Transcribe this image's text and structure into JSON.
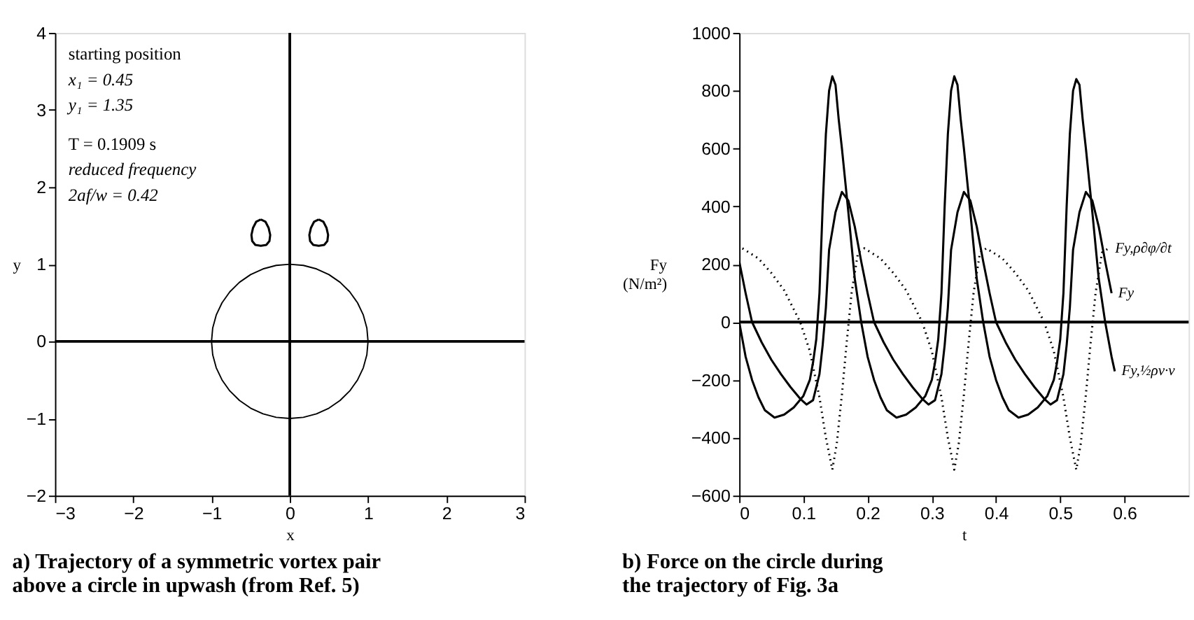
{
  "chart_data": [
    {
      "type": "line",
      "title": "a) Trajectory of a symmetric vortex pair above a circle in upwash (from Ref. 5)",
      "xlabel": "x",
      "ylabel": "y",
      "xlim": [
        -3,
        3
      ],
      "ylim": [
        -2,
        4
      ],
      "xticks": [
        -3,
        -2,
        -1,
        0,
        1,
        2,
        3
      ],
      "yticks": [
        -2,
        -1,
        0,
        1,
        2,
        3,
        4
      ],
      "grid": false,
      "legend": false,
      "ref_lines": [
        {
          "axis": "x",
          "value": 0,
          "color": "#000000"
        },
        {
          "axis": "y",
          "value": 0,
          "color": "#000000"
        }
      ],
      "annotations": [
        "starting position",
        "x₁ = 0.45",
        "y₁ = 1.35",
        "T = 0.1909 s",
        "reduced frequency",
        "2af/w = 0.42"
      ]
    },
    {
      "type": "line",
      "title": "b) Force on the circle during the trajectory of Fig. 3a",
      "xlabel": "t",
      "ylabel": "Fy (N/m²)",
      "xlim": [
        0,
        0.7
      ],
      "ylim": [
        -600,
        1000
      ],
      "xticks": [
        0,
        0.1,
        0.2,
        0.3,
        0.4,
        0.5,
        0.6
      ],
      "yticks": [
        -600,
        -400,
        -200,
        0,
        200,
        400,
        600,
        800,
        1000
      ],
      "grid": false,
      "legend": false,
      "series": [
        {
          "name": "Fy,½ρv·v",
          "color": "#000000",
          "line_style": "solid",
          "x": [
            0,
            0.01,
            0.02,
            0.03,
            0.04,
            0.055,
            0.07,
            0.085,
            0.1,
            0.11,
            0.115,
            0.12,
            0.125,
            0.13,
            0.135,
            0.14,
            0.145,
            0.15,
            0.155,
            0.16,
            0.17,
            0.18,
            0.19,
            0.2,
            0.21,
            0.22,
            0.23,
            0.245,
            0.26,
            0.275,
            0.29,
            0.3,
            0.305,
            0.31,
            0.315,
            0.32,
            0.325,
            0.33,
            0.335,
            0.34,
            0.345,
            0.35,
            0.36,
            0.37,
            0.38,
            0.39,
            0.4,
            0.41,
            0.42,
            0.435,
            0.45,
            0.465,
            0.48,
            0.49,
            0.495,
            0.5,
            0.505,
            0.51,
            0.515,
            0.52,
            0.525,
            0.53,
            0.535,
            0.54,
            0.55,
            0.56,
            0.57,
            0.58,
            0.585
          ],
          "values": [
            0,
            -120,
            -200,
            -260,
            -305,
            -330,
            -320,
            -295,
            -255,
            -200,
            -140,
            -60,
            100,
            400,
            650,
            800,
            850,
            820,
            700,
            600,
            380,
            150,
            0,
            -120,
            -200,
            -260,
            -305,
            -330,
            -320,
            -295,
            -255,
            -200,
            -140,
            -60,
            100,
            400,
            650,
            800,
            850,
            820,
            700,
            600,
            380,
            150,
            0,
            -120,
            -200,
            -260,
            -305,
            -330,
            -320,
            -295,
            -255,
            -200,
            -140,
            -60,
            100,
            400,
            650,
            800,
            840,
            820,
            700,
            600,
            380,
            150,
            0,
            -120,
            -170
          ]
        },
        {
          "name": "Fy",
          "color": "#000000",
          "line_style": "solid",
          "x": [
            0,
            0.01,
            0.02,
            0.035,
            0.05,
            0.065,
            0.08,
            0.095,
            0.105,
            0.115,
            0.125,
            0.13,
            0.135,
            0.14,
            0.15,
            0.16,
            0.17,
            0.18,
            0.19,
            0.2,
            0.21,
            0.225,
            0.24,
            0.255,
            0.27,
            0.285,
            0.295,
            0.305,
            0.315,
            0.32,
            0.325,
            0.33,
            0.34,
            0.35,
            0.36,
            0.37,
            0.38,
            0.39,
            0.4,
            0.415,
            0.43,
            0.445,
            0.46,
            0.475,
            0.485,
            0.495,
            0.505,
            0.51,
            0.515,
            0.52,
            0.53,
            0.54,
            0.55,
            0.56,
            0.57,
            0.58
          ],
          "values": [
            210,
            100,
            0,
            -70,
            -130,
            -180,
            -225,
            -265,
            -285,
            -270,
            -180,
            -80,
            50,
            250,
            380,
            450,
            420,
            330,
            210,
            100,
            0,
            -70,
            -130,
            -180,
            -225,
            -265,
            -285,
            -270,
            -180,
            -80,
            50,
            250,
            380,
            450,
            420,
            330,
            210,
            100,
            0,
            -70,
            -130,
            -180,
            -225,
            -265,
            -285,
            -270,
            -180,
            -80,
            50,
            250,
            380,
            450,
            420,
            330,
            210,
            100
          ]
        },
        {
          "name": "Fy,ρ∂φ/∂t",
          "color": "#000000",
          "line_style": "dotted",
          "x": [
            0.005,
            0.03,
            0.05,
            0.07,
            0.095,
            0.11,
            0.125,
            0.135,
            0.145,
            0.152,
            0.16,
            0.167,
            0.175,
            0.185,
            0.195,
            0.22,
            0.24,
            0.26,
            0.285,
            0.3,
            0.315,
            0.325,
            0.335,
            0.342,
            0.35,
            0.357,
            0.365,
            0.375,
            0.385,
            0.41,
            0.43,
            0.45,
            0.475,
            0.49,
            0.505,
            0.515,
            0.525,
            0.532,
            0.54,
            0.547,
            0.555,
            0.565,
            0.575
          ],
          "values": [
            255,
            220,
            170,
            110,
            0,
            -100,
            -260,
            -400,
            -510,
            -420,
            -250,
            -80,
            100,
            240,
            255,
            220,
            170,
            110,
            0,
            -100,
            -260,
            -400,
            -510,
            -420,
            -250,
            -80,
            100,
            240,
            255,
            220,
            170,
            110,
            0,
            -100,
            -260,
            -400,
            -510,
            -420,
            -250,
            -80,
            100,
            240,
            255
          ]
        }
      ],
      "ref_lines": [
        {
          "axis": "y",
          "value": 0,
          "color": "#000000"
        }
      ]
    }
  ]
}
